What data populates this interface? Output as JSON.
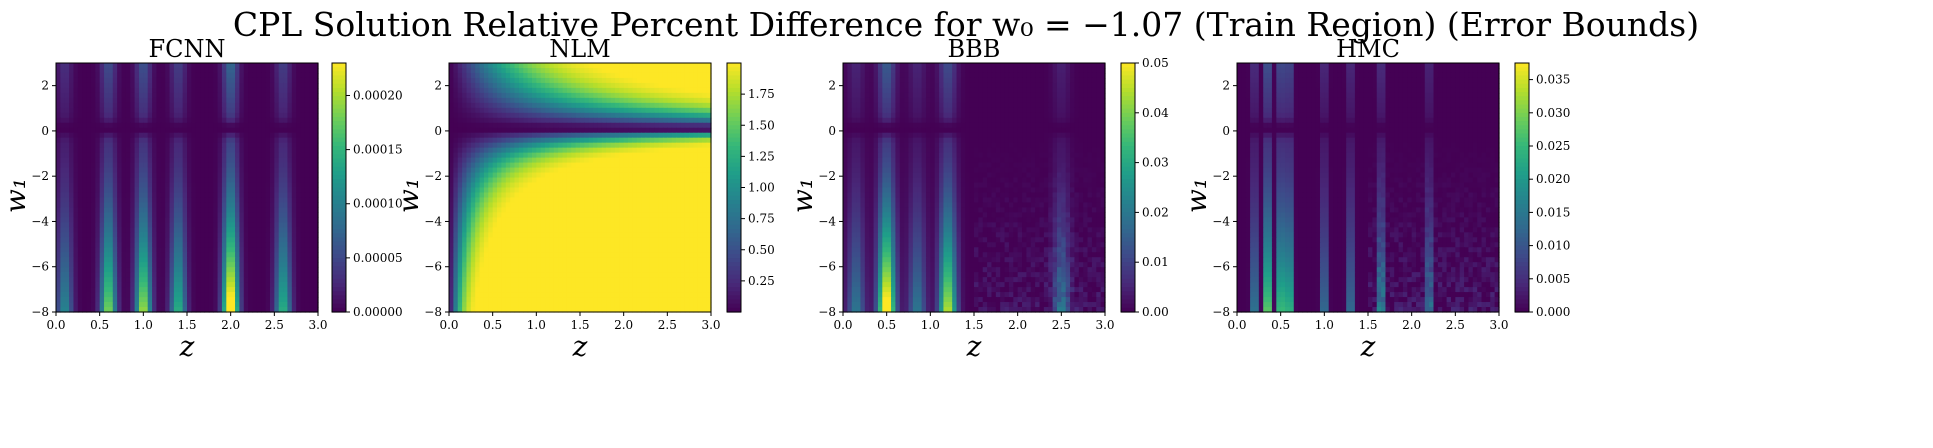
{
  "figure": {
    "suptitle": "CPL Solution Relative Percent Difference for w₀ = −1.07 (Train Region) (Error Bounds)"
  },
  "colormap": [
    "#440154",
    "#482878",
    "#3e4989",
    "#31688e",
    "#26828e",
    "#1f9e89",
    "#35b779",
    "#6ece58",
    "#b5de2b",
    "#fde725"
  ],
  "chart_data": [
    {
      "type": "heatmap",
      "title": "FCNN",
      "xlabel": "z",
      "ylabel": "w₁",
      "xlim": [
        0,
        3
      ],
      "ylim": [
        -8,
        3
      ],
      "xticks": [
        "0.0",
        "0.5",
        "1.0",
        "1.5",
        "2.0",
        "2.5",
        "3.0"
      ],
      "yticks": [
        "−8",
        "−6",
        "−4",
        "−2",
        "0",
        "2"
      ],
      "colorbar": {
        "range": [
          0,
          0.00023
        ],
        "ticks": [
          "0.00000",
          "0.00005",
          "0.00010",
          "0.00015",
          "0.00020"
        ],
        "tick_values": [
          0,
          5e-05,
          0.0001,
          0.00015,
          0.0002
        ]
      },
      "pattern": {
        "x_peaks": [
          [
            0.6,
            0.7
          ],
          [
            1.0,
            0.75
          ],
          [
            1.4,
            0.55
          ],
          [
            2.0,
            1.0
          ],
          [
            2.6,
            0.55
          ],
          [
            0.1,
            0.4
          ]
        ],
        "x_width": 0.09,
        "band_center": 0.1,
        "top_strength": 0.35,
        "bottom_growth": 1.0,
        "noise": 0.0
      }
    },
    {
      "type": "heatmap",
      "title": "NLM",
      "xlabel": "z",
      "ylabel": "w₁",
      "xlim": [
        0,
        3
      ],
      "ylim": [
        -8,
        3
      ],
      "xticks": [
        "0.0",
        "0.5",
        "1.0",
        "1.5",
        "2.0",
        "2.5",
        "3.0"
      ],
      "yticks": [
        "−8",
        "−6",
        "−4",
        "−2",
        "0",
        "2"
      ],
      "colorbar": {
        "range": [
          0,
          2.0
        ],
        "ticks": [
          "0.25",
          "0.50",
          "0.75",
          "1.00",
          "1.25",
          "1.50",
          "1.75"
        ],
        "tick_values": [
          0.25,
          0.5,
          0.75,
          1.0,
          1.25,
          1.5,
          1.75
        ]
      },
      "pattern": {
        "kind": "smooth",
        "band_center": 0.1
      }
    },
    {
      "type": "heatmap",
      "title": "BBB",
      "xlabel": "z",
      "ylabel": "w₁",
      "xlim": [
        0,
        3
      ],
      "ylim": [
        -8,
        3
      ],
      "xticks": [
        "0.0",
        "0.5",
        "1.0",
        "1.5",
        "2.0",
        "2.5",
        "3.0"
      ],
      "yticks": [
        "−8",
        "−6",
        "−4",
        "−2",
        "0",
        "2"
      ],
      "colorbar": {
        "range": [
          0,
          0.05
        ],
        "ticks": [
          "0.00",
          "0.01",
          "0.02",
          "0.03",
          "0.04",
          "0.05"
        ],
        "tick_values": [
          0,
          0.01,
          0.02,
          0.03,
          0.04,
          0.05
        ]
      },
      "pattern": {
        "x_peaks": [
          [
            0.5,
            1.0
          ],
          [
            1.2,
            0.8
          ],
          [
            0.15,
            0.35
          ],
          [
            0.85,
            0.35
          ],
          [
            2.5,
            0.3
          ]
        ],
        "x_width": 0.1,
        "band_center": 0.1,
        "top_strength": 0.3,
        "bottom_growth": 1.0,
        "noise": 0.25
      }
    },
    {
      "type": "heatmap",
      "title": "HMC",
      "xlabel": "z",
      "ylabel": "w₁",
      "xlim": [
        0,
        3
      ],
      "ylim": [
        -8,
        3
      ],
      "xticks": [
        "0.0",
        "0.5",
        "1.0",
        "1.5",
        "2.0",
        "2.5",
        "3.0"
      ],
      "yticks": [
        "−8",
        "−6",
        "−4",
        "−2",
        "0",
        "2"
      ],
      "colorbar": {
        "range": [
          0,
          0.0375
        ],
        "ticks": [
          "0.000",
          "0.005",
          "0.010",
          "0.015",
          "0.020",
          "0.025",
          "0.030",
          "0.035"
        ],
        "tick_values": [
          0,
          0.005,
          0.01,
          0.015,
          0.02,
          0.025,
          0.03,
          0.035
        ]
      },
      "pattern": {
        "x_peaks": [
          [
            0.35,
            1.0
          ],
          [
            0.5,
            0.9
          ],
          [
            0.6,
            0.85
          ],
          [
            0.2,
            0.5
          ],
          [
            1.0,
            0.45
          ],
          [
            1.3,
            0.45
          ],
          [
            1.65,
            0.5
          ],
          [
            2.2,
            0.4
          ]
        ],
        "x_width": 0.035,
        "band_center": 0.1,
        "top_strength": 0.4,
        "bottom_growth": 1.0,
        "noise": 0.3
      }
    }
  ]
}
